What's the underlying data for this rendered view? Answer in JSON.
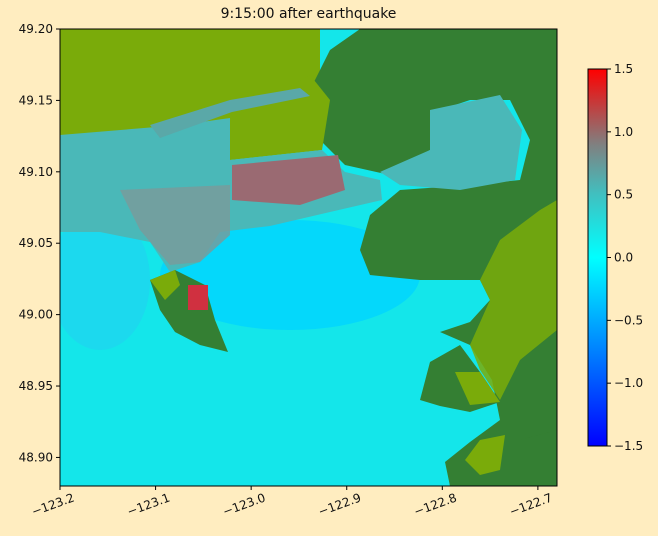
{
  "chart_data": {
    "type": "heatmap",
    "title": "9:15:00 after earthquake",
    "xlabel": "",
    "ylabel": "",
    "xlim": [
      -123.2,
      -122.68
    ],
    "ylim": [
      48.88,
      49.2
    ],
    "x_ticks": [
      {
        "value": -123.2,
        "label": "−123.2"
      },
      {
        "value": -123.1,
        "label": "−123.1"
      },
      {
        "value": -123.0,
        "label": "−123.0"
      },
      {
        "value": -122.9,
        "label": "−122.9"
      },
      {
        "value": -122.8,
        "label": "−122.8"
      },
      {
        "value": -122.7,
        "label": "−122.7"
      }
    ],
    "y_ticks": [
      {
        "value": 49.2,
        "label": "49.20"
      },
      {
        "value": 49.15,
        "label": "49.15"
      },
      {
        "value": 49.1,
        "label": "49.10"
      },
      {
        "value": 49.05,
        "label": "49.05"
      },
      {
        "value": 49.0,
        "label": "49.00"
      },
      {
        "value": 48.95,
        "label": "48.95"
      },
      {
        "value": 48.9,
        "label": "48.90"
      }
    ],
    "colorbar": {
      "range": [
        -1.5,
        1.5
      ],
      "ticks": [
        {
          "value": 1.5,
          "label": "1.5"
        },
        {
          "value": 1.0,
          "label": "1.0"
        },
        {
          "value": 0.5,
          "label": "0.5"
        },
        {
          "value": 0.0,
          "label": "0.0"
        },
        {
          "value": -0.5,
          "label": "−0.5"
        },
        {
          "value": -1.0,
          "label": "−1.0"
        },
        {
          "value": -1.5,
          "label": "−1.5"
        }
      ],
      "colors": [
        "#0000ff",
        "#0080ff",
        "#00ffff",
        "#40c0c0",
        "#808080",
        "#c04040",
        "#ff0000"
      ]
    },
    "colors": {
      "water": "#10ecec",
      "deep_water": "#00c8ff",
      "land_high": "#347f33",
      "land_low": "#7aab0a",
      "flood": "#4ab8b8",
      "flood_high": "#a06070"
    }
  }
}
